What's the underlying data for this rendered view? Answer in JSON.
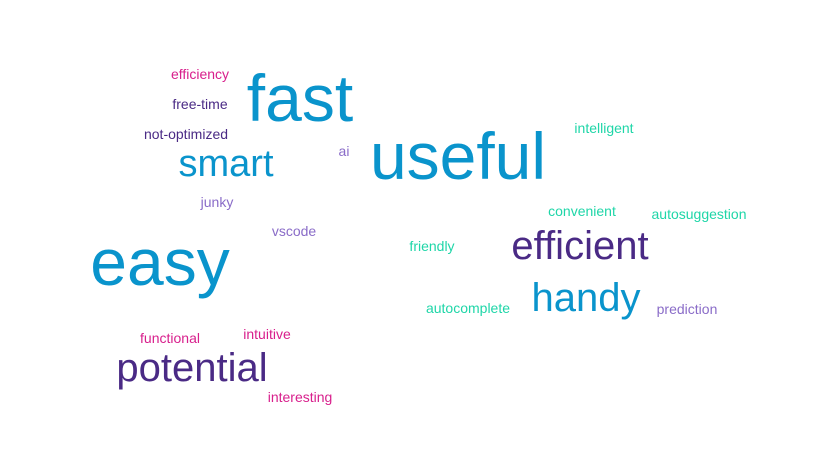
{
  "colors": {
    "blue": "#0a94cc",
    "purple": "#4a2a85",
    "lavender": "#8a6cc8",
    "teal": "#1fd6a8",
    "pink": "#d81f8c"
  },
  "words": [
    {
      "text": "fast",
      "color": "blue"
    },
    {
      "text": "useful",
      "color": "blue"
    },
    {
      "text": "easy",
      "color": "blue"
    },
    {
      "text": "smart",
      "color": "blue"
    },
    {
      "text": "handy",
      "color": "blue"
    },
    {
      "text": "efficient",
      "color": "purple"
    },
    {
      "text": "potential",
      "color": "purple"
    },
    {
      "text": "free-time",
      "color": "purple"
    },
    {
      "text": "not-optimized",
      "color": "purple"
    },
    {
      "text": "efficiency",
      "color": "pink"
    },
    {
      "text": "functional",
      "color": "pink"
    },
    {
      "text": "intuitive",
      "color": "pink"
    },
    {
      "text": "interesting",
      "color": "pink"
    },
    {
      "text": "ai",
      "color": "lavender"
    },
    {
      "text": "junky",
      "color": "lavender"
    },
    {
      "text": "vscode",
      "color": "lavender"
    },
    {
      "text": "prediction",
      "color": "lavender"
    },
    {
      "text": "intelligent",
      "color": "teal"
    },
    {
      "text": "convenient",
      "color": "teal"
    },
    {
      "text": "autosuggestion",
      "color": "teal"
    },
    {
      "text": "friendly",
      "color": "teal"
    },
    {
      "text": "autocomplete",
      "color": "teal"
    }
  ]
}
